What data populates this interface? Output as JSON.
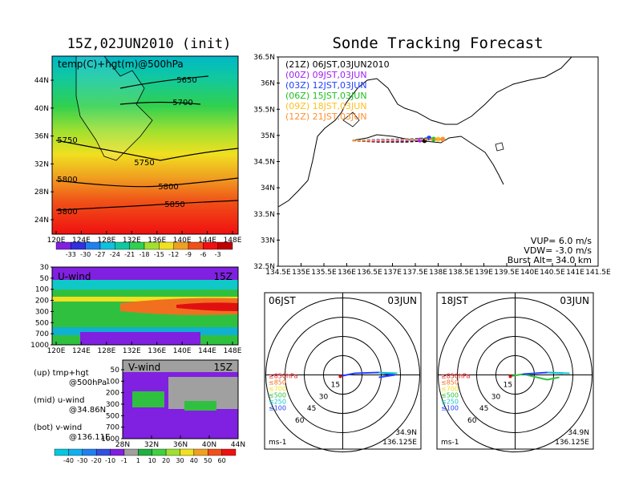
{
  "titles": {
    "left": "15Z,02JUN2010 (init)",
    "right": "Sonde Tracking Forecast"
  },
  "panels": {
    "temp": {
      "label": "temp(C)+hgt(m)@500hPa",
      "y_ticks": [
        "44N",
        "40N",
        "36N",
        "32N",
        "28N",
        "24N"
      ],
      "x_ticks": [
        "120E",
        "124E",
        "128E",
        "132E",
        "136E",
        "140E",
        "144E",
        "148E"
      ],
      "contour_labels": [
        "5650",
        "5700",
        "5750",
        "5750",
        "5800",
        "5800",
        "5800",
        "5850",
        "5850"
      ]
    },
    "temp_colorbar": {
      "labels": [
        "-33",
        "-30",
        "-27",
        "-24",
        "-21",
        "-18",
        "-15",
        "-12",
        "-9",
        "-6",
        "-3"
      ]
    },
    "uwind": {
      "label": "U-wind",
      "time": "15Z",
      "y_ticks": [
        "30",
        "50",
        "100",
        "200",
        "300",
        "500",
        "700",
        "1000"
      ],
      "x_ticks": [
        "120E",
        "124E",
        "128E",
        "132E",
        "136E",
        "140E",
        "144E",
        "148E"
      ]
    },
    "vwind": {
      "label": "V-wind",
      "time": "15Z",
      "y_ticks": [
        "50",
        "100",
        "200",
        "300",
        "500",
        "700",
        "1000"
      ],
      "x_ticks": [
        "28N",
        "32N",
        "36N",
        "40N",
        "44N"
      ]
    },
    "wind_colorbar": {
      "labels": [
        "-40",
        "-30",
        "-20",
        "-10",
        "-1",
        "1",
        "10",
        "20",
        "30",
        "40",
        "50",
        "60"
      ]
    },
    "notes": [
      "(up) tmp+hgt",
      "@500hPa",
      "(mid) u-wind",
      "@34.86N",
      "(bot) v-wind",
      "@136.11E"
    ]
  },
  "map": {
    "legend": [
      {
        "text": "(21Z)  06JST,03JUN2010",
        "color": "#000000"
      },
      {
        "text": "(00Z)  09JST,03JUN",
        "color": "#a020f0"
      },
      {
        "text": "(03Z)  12JST,03JUN",
        "color": "#2040ff"
      },
      {
        "text": "(06Z)  15JST,03JUN",
        "color": "#20c020"
      },
      {
        "text": "(09Z)  18JST,03JUN",
        "color": "#ffc020"
      },
      {
        "text": "(12Z)  21JST,03JUN",
        "color": "#ff9030"
      }
    ],
    "y_ticks": [
      "36.5N",
      "36N",
      "35.5N",
      "35N",
      "34.5N",
      "34N",
      "33.5N",
      "33N",
      "32.5N"
    ],
    "x_ticks": [
      "134.5E",
      "135E",
      "135.5E",
      "136E",
      "136.5E",
      "137E",
      "137.5E",
      "138E",
      "138.5E",
      "139E",
      "139.5E",
      "140E",
      "140.5E",
      "141E",
      "141.5E"
    ],
    "info": [
      "VUP=  6.0  m/s",
      "VDW= -3.0  m/s",
      "Burst Alt=  34.0  km"
    ]
  },
  "hodographs": [
    {
      "time": "06JST",
      "date": "03JUN",
      "rings": [
        "15",
        "30",
        "45",
        "60"
      ],
      "levels": [
        "≥850hPa",
        "≤850",
        "≤700",
        "≤500",
        "≤250",
        "≤100"
      ],
      "unit": "ms-1",
      "lat": "34.9N",
      "lon": "136.125E"
    },
    {
      "time": "18JST",
      "date": "03JUN",
      "rings": [
        "15",
        "30",
        "45",
        "60"
      ],
      "levels": [
        "≥850hPa",
        "≤850",
        "≤700",
        "≤500",
        "≤250",
        "≤100"
      ],
      "unit": "ms-1",
      "lat": "34.9N",
      "lon": "136.125E"
    }
  ],
  "chart_data": [
    {
      "type": "line",
      "title": "Sonde Tracking Forecast",
      "xlim": [
        134.5,
        141.5
      ],
      "ylim": [
        32.5,
        36.5
      ],
      "series": [
        {
          "name": "(21Z) 06JST,03JUN2010",
          "x": [
            136.125,
            136.7,
            137.3,
            137.7
          ],
          "y": [
            34.9,
            34.88,
            34.88,
            34.9
          ]
        },
        {
          "name": "(00Z) 09JST,03JUN",
          "x": [
            136.125,
            136.7,
            137.3,
            137.6
          ],
          "y": [
            34.9,
            34.89,
            34.9,
            34.91
          ]
        },
        {
          "name": "(03Z) 12JST,03JUN",
          "x": [
            136.125,
            136.8,
            137.4,
            137.8
          ],
          "y": [
            34.9,
            34.92,
            34.93,
            34.95
          ]
        },
        {
          "name": "(06Z) 15JST,03JUN",
          "x": [
            136.125,
            136.8,
            137.5,
            137.9
          ],
          "y": [
            34.9,
            34.91,
            34.92,
            34.93
          ]
        },
        {
          "name": "(09Z) 18JST,03JUN",
          "x": [
            136.125,
            136.9,
            137.6,
            138.0
          ],
          "y": [
            34.9,
            34.91,
            34.92,
            34.93
          ]
        },
        {
          "name": "(12Z) 21JST,03JUN",
          "x": [
            136.125,
            136.9,
            137.6,
            138.1
          ],
          "y": [
            34.9,
            34.91,
            34.92,
            34.93
          ]
        }
      ]
    }
  ]
}
